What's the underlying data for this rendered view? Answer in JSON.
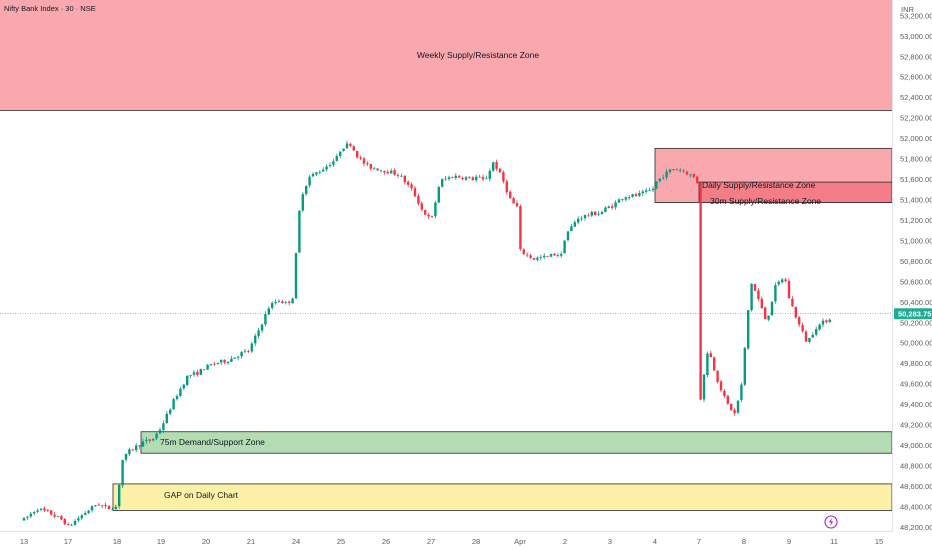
{
  "chart_data": {
    "type": "candlestick",
    "title": "Nifty Bank Index · 30 · NSE",
    "currency": "INR",
    "x_ticks": [
      "13",
      "17",
      "18",
      "19",
      "20",
      "21",
      "24",
      "25",
      "26",
      "27",
      "28",
      "Apr",
      "2",
      "3",
      "4",
      "7",
      "8",
      "9",
      "11",
      "15"
    ],
    "y_ticks": [
      "53,200.00",
      "53,000.00",
      "52,800.00",
      "52,600.00",
      "52,400.00",
      "52,200.00",
      "52,000.00",
      "51,800.00",
      "51,600.00",
      "51,400.00",
      "51,200.00",
      "51,000.00",
      "50,800.00",
      "50,600.00",
      "50,400.00",
      "50,200.00",
      "50,000.00",
      "49,800.00",
      "49,600.00",
      "49,400.00",
      "49,200.00",
      "49,000.00",
      "48,800.00",
      "48,600.00",
      "48,400.00",
      "48,200.00"
    ],
    "ylim": [
      48150,
      53350
    ],
    "last_price": 50283.75,
    "last_price_label": "50,283.75",
    "colors": {
      "up": "#089981",
      "down": "#f23645",
      "last_price": "#22ab94"
    },
    "zones": [
      {
        "label": "Weekly Supply/Resistance Zone",
        "y_low": 52270,
        "y_high": 53350,
        "color": "#f9a9ad"
      },
      {
        "label": "Daily Supply/Resistance Zone",
        "y_low": 51370,
        "y_high": 51900,
        "color": "#f9a9ad"
      },
      {
        "label": "30m Supply/Resistance Zone",
        "y_low": 51370,
        "y_high": 51570,
        "color": "#f47e87"
      },
      {
        "label": "75m Demand/Support Zone",
        "y_low": 48920,
        "y_high": 49130,
        "color": "#b3dcb3"
      },
      {
        "label": "GAP on Daily Chart",
        "y_low": 48360,
        "y_high": 48620,
        "color": "#fdf1a8"
      }
    ],
    "path": [
      [
        13.0,
        48270
      ],
      [
        13.3,
        48380
      ],
      [
        13.6,
        48330
      ],
      [
        13.9,
        48260
      ],
      [
        17.0,
        48200
      ],
      [
        17.3,
        48320
      ],
      [
        17.6,
        48430
      ],
      [
        17.8,
        48380
      ],
      [
        18.0,
        48400
      ],
      [
        18.1,
        48840
      ],
      [
        18.3,
        48950
      ],
      [
        18.6,
        49030
      ],
      [
        18.8,
        49050
      ],
      [
        19.0,
        49170
      ],
      [
        19.3,
        49450
      ],
      [
        19.6,
        49680
      ],
      [
        19.8,
        49700
      ],
      [
        19.95,
        49750
      ],
      [
        20.2,
        49800
      ],
      [
        20.5,
        49830
      ],
      [
        20.8,
        49900
      ],
      [
        20.95,
        49920
      ],
      [
        21.2,
        50150
      ],
      [
        21.4,
        50350
      ],
      [
        21.6,
        50420
      ],
      [
        21.8,
        50380
      ],
      [
        21.95,
        50460
      ],
      [
        24.0,
        50860
      ],
      [
        24.1,
        51420
      ],
      [
        24.3,
        51620
      ],
      [
        24.6,
        51700
      ],
      [
        24.9,
        51800
      ],
      [
        25.0,
        51900
      ],
      [
        25.2,
        51950
      ],
      [
        25.4,
        51800
      ],
      [
        25.6,
        51720
      ],
      [
        25.8,
        51700
      ],
      [
        26.0,
        51680
      ],
      [
        26.3,
        51640
      ],
      [
        26.6,
        51480
      ],
      [
        26.8,
        51300
      ],
      [
        26.95,
        51220
      ],
      [
        27.0,
        51180
      ],
      [
        27.2,
        51580
      ],
      [
        27.5,
        51630
      ],
      [
        27.8,
        51610
      ],
      [
        27.95,
        51600
      ],
      [
        28.0,
        51620
      ],
      [
        28.2,
        51580
      ],
      [
        28.4,
        51770
      ],
      [
        28.6,
        51600
      ],
      [
        28.8,
        51380
      ],
      [
        28.95,
        51320
      ],
      [
        31.0,
        50900
      ],
      [
        31.3,
        50820
      ],
      [
        31.6,
        50840
      ],
      [
        31.8,
        50870
      ],
      [
        31.95,
        50850
      ],
      [
        32.0,
        51050
      ],
      [
        32.3,
        51220
      ],
      [
        32.6,
        51260
      ],
      [
        32.8,
        51270
      ],
      [
        32.95,
        51330
      ],
      [
        33.0,
        51320
      ],
      [
        33.3,
        51430
      ],
      [
        33.6,
        51440
      ],
      [
        33.8,
        51470
      ],
      [
        33.95,
        51500
      ],
      [
        34.0,
        51560
      ],
      [
        34.2,
        51640
      ],
      [
        34.4,
        51700
      ],
      [
        34.6,
        51690
      ],
      [
        34.8,
        51640
      ],
      [
        34.95,
        51600
      ],
      [
        34.98,
        51500
      ],
      [
        37.0,
        49350
      ],
      [
        37.2,
        49950
      ],
      [
        37.4,
        49650
      ],
      [
        37.6,
        49420
      ],
      [
        37.8,
        49300
      ],
      [
        37.95,
        49600
      ],
      [
        38.0,
        49850
      ],
      [
        38.15,
        50600
      ],
      [
        38.3,
        50450
      ],
      [
        38.5,
        50200
      ],
      [
        38.7,
        50550
      ],
      [
        38.9,
        50650
      ],
      [
        39.0,
        50440
      ],
      [
        39.2,
        50200
      ],
      [
        39.4,
        50000
      ],
      [
        39.6,
        50150
      ],
      [
        39.8,
        50210
      ],
      [
        39.98,
        50260
      ]
    ]
  }
}
